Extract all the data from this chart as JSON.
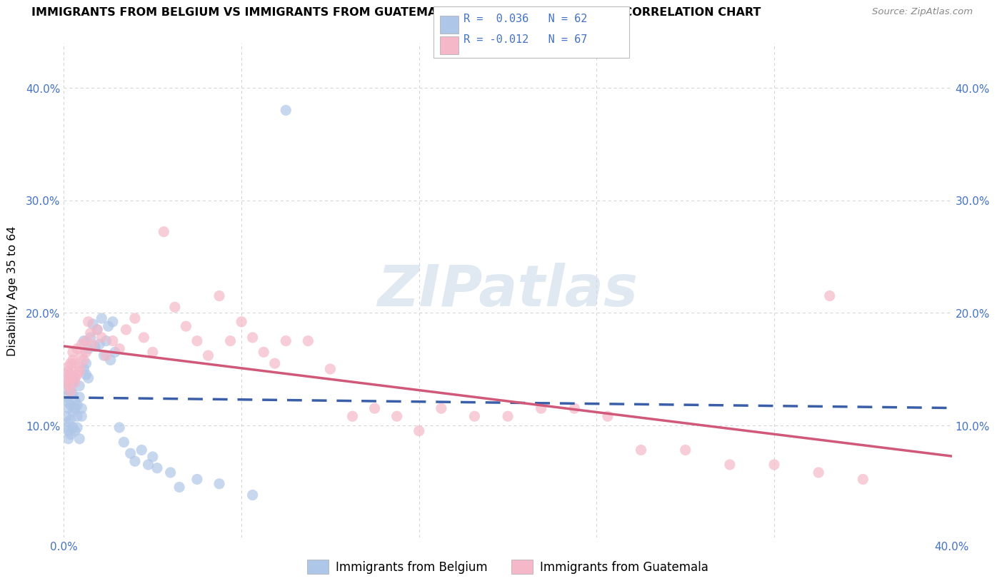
{
  "title": "IMMIGRANTS FROM BELGIUM VS IMMIGRANTS FROM GUATEMALA DISABILITY AGE 35 TO 64 CORRELATION CHART",
  "source": "Source: ZipAtlas.com",
  "ylabel": "Disability Age 35 to 64",
  "xlim": [
    0.0,
    0.4
  ],
  "ylim": [
    0.0,
    0.44
  ],
  "belgium_color": "#aec6e8",
  "guatemala_color": "#f5b8c8",
  "belgium_line_color": "#3a5fa8",
  "guatemala_line_color": "#d05878",
  "r_value_color": "#4472c4",
  "watermark": "ZIPatlas",
  "background_color": "#ffffff",
  "grid_color": "#d0d0d0",
  "belgium_scatter_x": [
    0.001,
    0.001,
    0.001,
    0.001,
    0.002,
    0.002,
    0.002,
    0.002,
    0.002,
    0.003,
    0.003,
    0.003,
    0.003,
    0.003,
    0.004,
    0.004,
    0.004,
    0.004,
    0.005,
    0.005,
    0.005,
    0.005,
    0.006,
    0.006,
    0.006,
    0.007,
    0.007,
    0.007,
    0.008,
    0.008,
    0.009,
    0.009,
    0.01,
    0.01,
    0.011,
    0.011,
    0.012,
    0.013,
    0.014,
    0.015,
    0.016,
    0.017,
    0.018,
    0.019,
    0.02,
    0.021,
    0.022,
    0.023,
    0.025,
    0.027,
    0.03,
    0.032,
    0.035,
    0.038,
    0.04,
    0.042,
    0.048,
    0.052,
    0.06,
    0.07,
    0.085,
    0.1
  ],
  "belgium_scatter_y": [
    0.125,
    0.132,
    0.108,
    0.098,
    0.12,
    0.115,
    0.088,
    0.103,
    0.095,
    0.13,
    0.118,
    0.145,
    0.092,
    0.105,
    0.128,
    0.138,
    0.112,
    0.098,
    0.122,
    0.115,
    0.095,
    0.142,
    0.108,
    0.098,
    0.118,
    0.125,
    0.135,
    0.088,
    0.115,
    0.108,
    0.15,
    0.175,
    0.145,
    0.155,
    0.168,
    0.142,
    0.178,
    0.19,
    0.17,
    0.185,
    0.172,
    0.195,
    0.162,
    0.175,
    0.188,
    0.158,
    0.192,
    0.165,
    0.098,
    0.085,
    0.075,
    0.068,
    0.078,
    0.065,
    0.072,
    0.062,
    0.058,
    0.045,
    0.052,
    0.048,
    0.038,
    0.38
  ],
  "guatemala_scatter_x": [
    0.001,
    0.001,
    0.002,
    0.002,
    0.002,
    0.002,
    0.003,
    0.003,
    0.003,
    0.004,
    0.004,
    0.004,
    0.005,
    0.005,
    0.005,
    0.006,
    0.006,
    0.007,
    0.007,
    0.008,
    0.008,
    0.009,
    0.01,
    0.01,
    0.011,
    0.012,
    0.013,
    0.015,
    0.017,
    0.019,
    0.022,
    0.025,
    0.028,
    0.032,
    0.036,
    0.04,
    0.045,
    0.05,
    0.055,
    0.06,
    0.065,
    0.07,
    0.075,
    0.08,
    0.085,
    0.09,
    0.095,
    0.1,
    0.11,
    0.12,
    0.13,
    0.14,
    0.15,
    0.16,
    0.17,
    0.185,
    0.2,
    0.215,
    0.23,
    0.245,
    0.26,
    0.28,
    0.3,
    0.32,
    0.34,
    0.36,
    0.345
  ],
  "guatemala_scatter_y": [
    0.14,
    0.145,
    0.138,
    0.152,
    0.135,
    0.148,
    0.142,
    0.155,
    0.13,
    0.148,
    0.158,
    0.165,
    0.142,
    0.138,
    0.155,
    0.168,
    0.145,
    0.152,
    0.148,
    0.162,
    0.172,
    0.158,
    0.165,
    0.175,
    0.192,
    0.182,
    0.172,
    0.185,
    0.178,
    0.162,
    0.175,
    0.168,
    0.185,
    0.195,
    0.178,
    0.165,
    0.272,
    0.205,
    0.188,
    0.175,
    0.162,
    0.215,
    0.175,
    0.192,
    0.178,
    0.165,
    0.155,
    0.175,
    0.175,
    0.15,
    0.108,
    0.115,
    0.108,
    0.095,
    0.115,
    0.108,
    0.108,
    0.115,
    0.115,
    0.108,
    0.078,
    0.078,
    0.065,
    0.065,
    0.058,
    0.052,
    0.215
  ]
}
